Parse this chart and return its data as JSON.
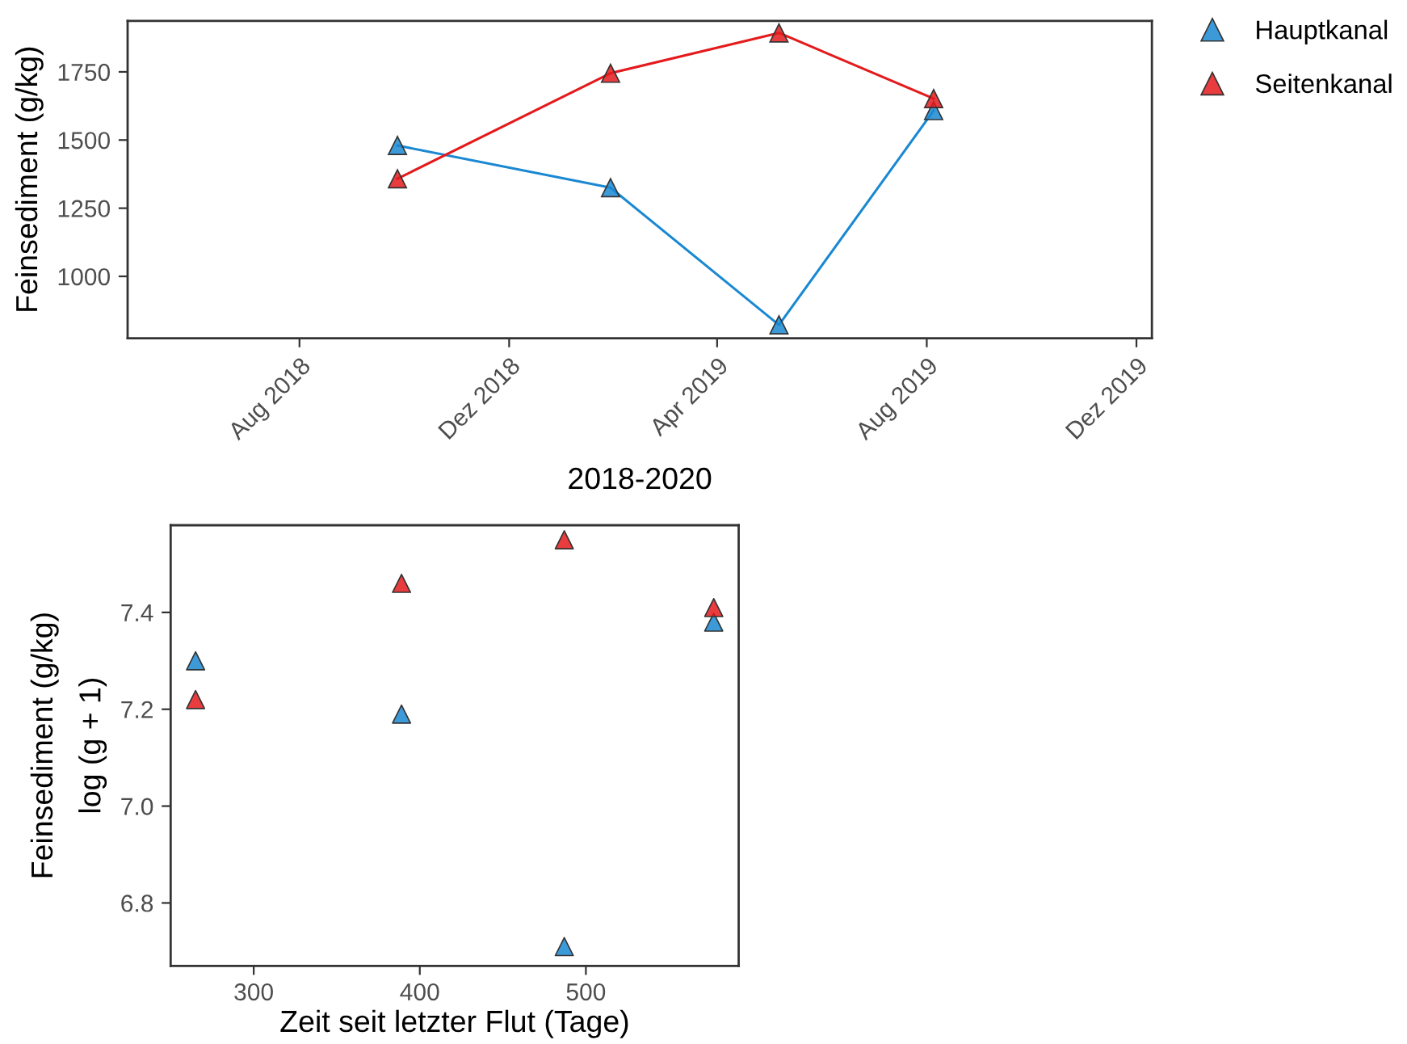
{
  "chart_data": [
    {
      "type": "line",
      "xlabel": "2018-2020",
      "ylabel": "Feinsediment (g/kg)",
      "x": [
        "2018-09-27",
        "2019-01-29",
        "2019-05-07",
        "2019-08-05"
      ],
      "series": [
        {
          "name": "Hauptkanal",
          "color": "#1a88d2",
          "values": [
            1480,
            1325,
            822,
            1608
          ]
        },
        {
          "name": "Seitenkanal",
          "color": "#e41a1c",
          "values": [
            1358,
            1745,
            1893,
            1652
          ]
        }
      ],
      "xlim": [
        "2018-04-23",
        "2019-12-10"
      ],
      "xticks": [
        {
          "value": "2018-08-01",
          "label": "Aug 2018"
        },
        {
          "value": "2018-12-01",
          "label": "Dez 2018"
        },
        {
          "value": "2019-04-01",
          "label": "Apr 2019"
        },
        {
          "value": "2019-08-01",
          "label": "Aug 2019"
        },
        {
          "value": "2019-12-01",
          "label": "Dez 2019"
        }
      ],
      "ylim": [
        773,
        1937
      ],
      "yticks": [
        1000,
        1250,
        1500,
        1750
      ],
      "marker": "triangle",
      "legend": "top right"
    },
    {
      "type": "scatter",
      "xlabel": "Zeit seit letzter Flut (Tage)",
      "ylabel": "Feinsediment (g/kg)\nlog (g + 1)",
      "x": [
        265,
        389,
        487,
        577
      ],
      "series": [
        {
          "color": "#1a88d2",
          "values": [
            7.3,
            7.19,
            6.71,
            7.38
          ]
        },
        {
          "color": "#e41a1c",
          "values": [
            7.22,
            7.46,
            7.55,
            7.41
          ]
        }
      ],
      "xlim": [
        250,
        592
      ],
      "xticks": [
        300,
        400,
        500
      ],
      "ylim": [
        6.67,
        7.58
      ],
      "yticks": [
        6.8,
        {
          "value": 7.0,
          "label": "7.0"
        },
        7.2,
        7.4
      ],
      "marker": "triangle"
    }
  ]
}
